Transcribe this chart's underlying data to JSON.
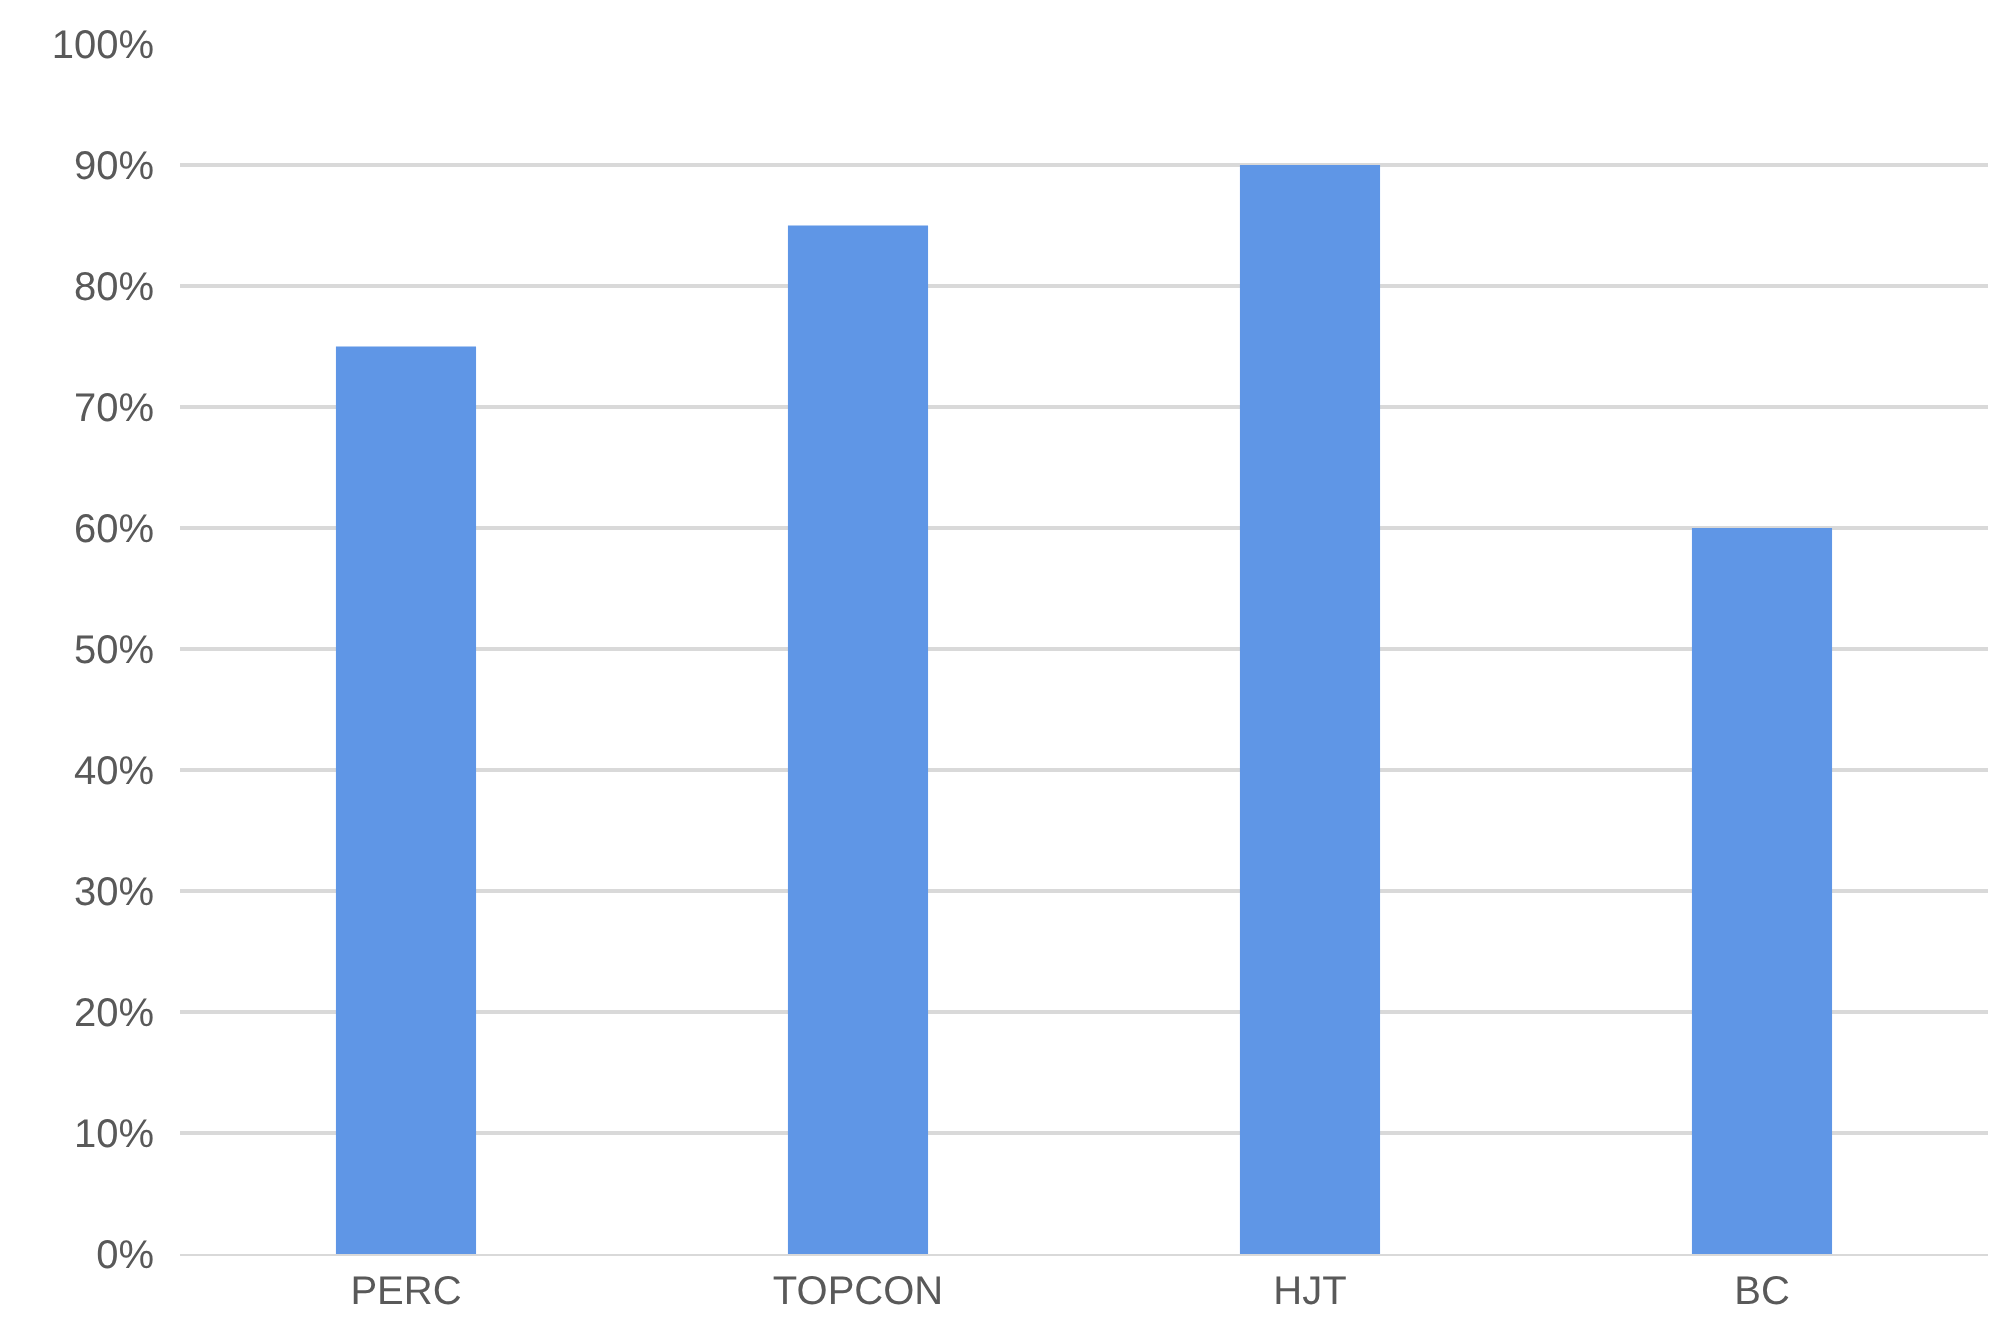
{
  "chart_data": {
    "type": "bar",
    "categories": [
      "PERC",
      "TOPCON",
      "HJT",
      "BC"
    ],
    "values": [
      75,
      85,
      90,
      60
    ],
    "color": "#5f96e6",
    "ylim": [
      0,
      100
    ],
    "yticks": [
      {
        "value": 0,
        "label": "0%"
      },
      {
        "value": 10,
        "label": "10%"
      },
      {
        "value": 20,
        "label": "20%"
      },
      {
        "value": 30,
        "label": "30%"
      },
      {
        "value": 40,
        "label": "40%"
      },
      {
        "value": 50,
        "label": "50%"
      },
      {
        "value": 60,
        "label": "60%"
      },
      {
        "value": 70,
        "label": "70%"
      },
      {
        "value": 80,
        "label": "80%"
      },
      {
        "value": 90,
        "label": "90%"
      },
      {
        "value": 100,
        "label": "100%"
      }
    ],
    "grid": "y"
  }
}
